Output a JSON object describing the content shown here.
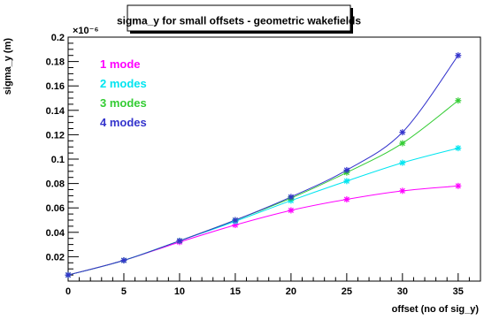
{
  "chart_data": {
    "type": "line",
    "title": "sigma_y for small offsets - geometric wakefields",
    "xlabel": "offset (no of sig_y)",
    "ylabel": "sigma_y (m)",
    "y_multiplier": "×10⁻⁶",
    "xlim": [
      0,
      37
    ],
    "ylim": [
      0,
      0.2
    ],
    "x_ticks": [
      0,
      5,
      10,
      15,
      20,
      25,
      30,
      35
    ],
    "y_ticks": [
      0.02,
      0.04,
      0.06,
      0.08,
      0.1,
      0.12,
      0.14,
      0.16,
      0.18,
      0.2
    ],
    "x": [
      0,
      5,
      10,
      15,
      20,
      25,
      30,
      35
    ],
    "series": [
      {
        "name": "1 mode",
        "color": "#ff00ff",
        "values": [
          0.005,
          0.017,
          0.032,
          0.046,
          0.058,
          0.067,
          0.074,
          0.078
        ]
      },
      {
        "name": "2 modes",
        "color": "#00e5f0",
        "values": [
          0.005,
          0.017,
          0.033,
          0.049,
          0.066,
          0.082,
          0.097,
          0.109
        ]
      },
      {
        "name": "3 modes",
        "color": "#33cc33",
        "values": [
          0.005,
          0.017,
          0.033,
          0.05,
          0.068,
          0.089,
          0.113,
          0.148
        ]
      },
      {
        "name": "4 modes",
        "color": "#3333cc",
        "values": [
          0.005,
          0.017,
          0.033,
          0.05,
          0.069,
          0.091,
          0.122,
          0.185
        ]
      }
    ],
    "grid": false,
    "legend_position": "top-left"
  }
}
